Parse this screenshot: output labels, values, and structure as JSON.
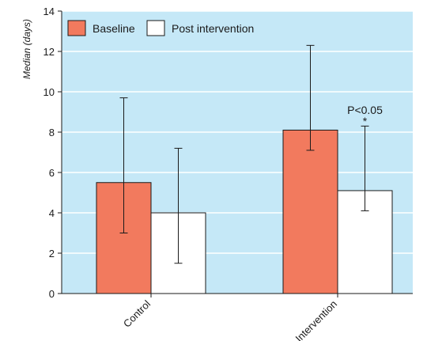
{
  "chart_data": {
    "type": "bar",
    "ylabel": "Median (days)",
    "xlabel": "",
    "ylim": [
      0,
      14
    ],
    "yticks": [
      0,
      2,
      4,
      6,
      8,
      10,
      12,
      14
    ],
    "grid": true,
    "legend_position": "top-left",
    "categories": [
      "Control",
      "Intervention"
    ],
    "series": [
      {
        "name": "Baseline",
        "color": "#f27a5e",
        "values": [
          5.5,
          8.1
        ],
        "error_low": [
          3.0,
          7.1
        ],
        "error_high": [
          9.7,
          12.3
        ]
      },
      {
        "name": "Post intervention",
        "color": "#ffffff",
        "values": [
          4.0,
          5.1
        ],
        "error_low": [
          1.5,
          4.1
        ],
        "error_high": [
          7.2,
          8.3
        ]
      }
    ],
    "annotations": [
      {
        "text": "P<0.05",
        "category": "Intervention",
        "series": "Post intervention"
      },
      {
        "text": "*",
        "category": "Intervention",
        "series": "Post intervention"
      }
    ],
    "background_color": "#c5e8f7"
  }
}
